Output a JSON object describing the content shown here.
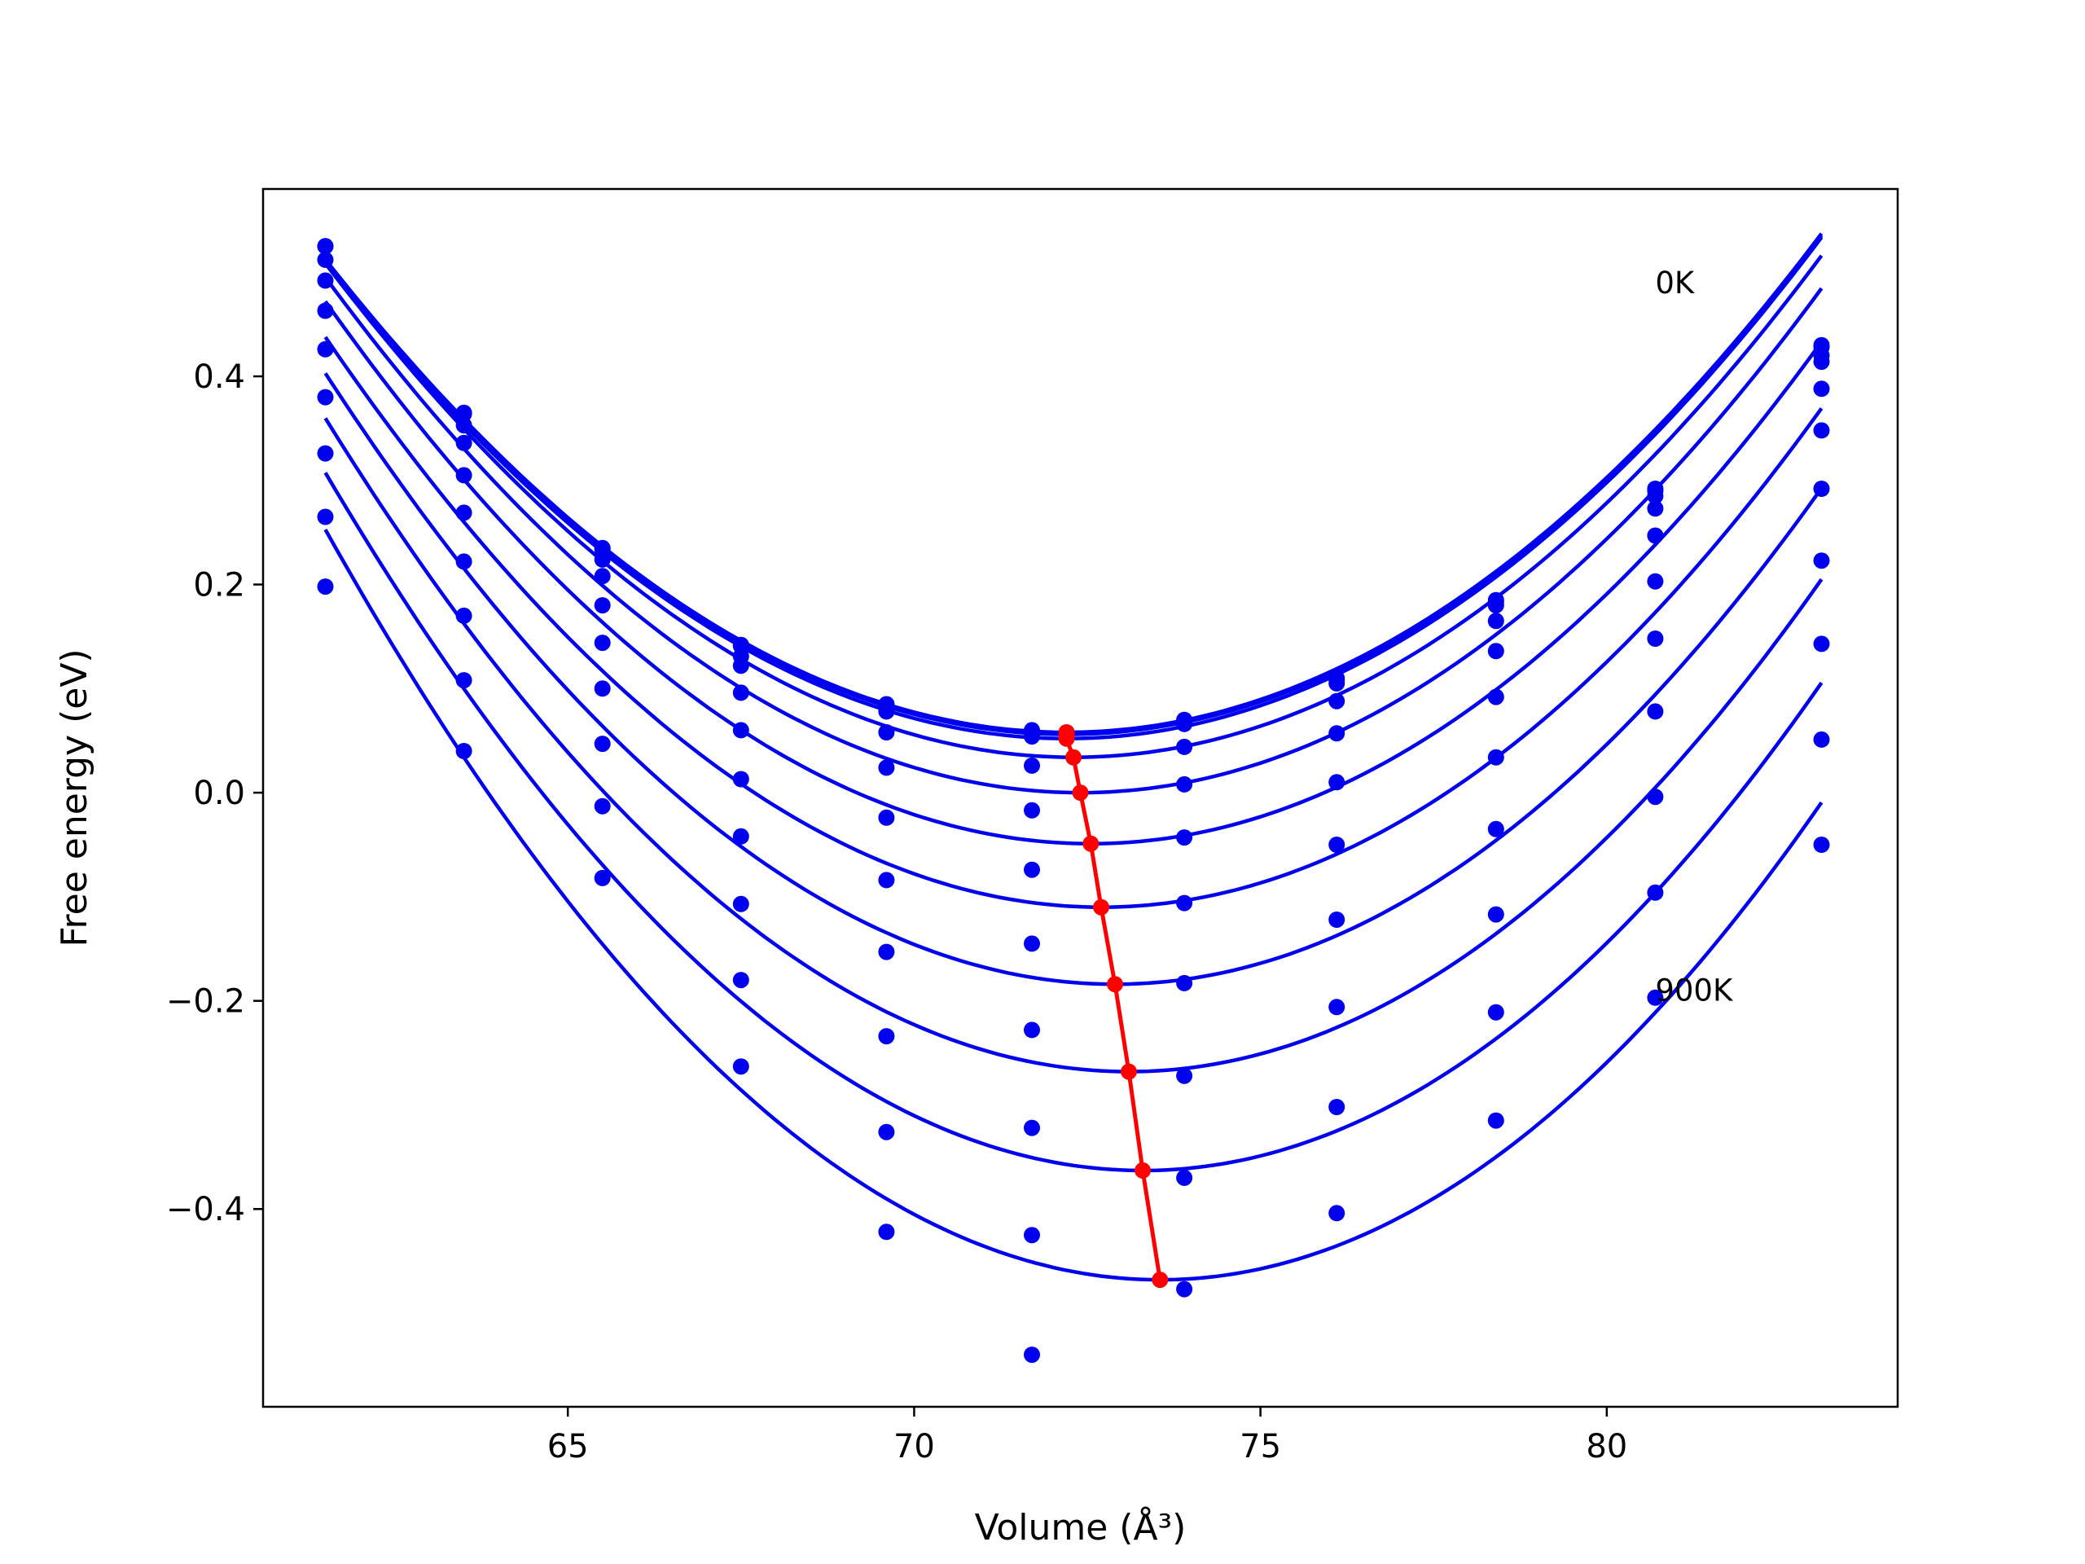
{
  "chart_data": {
    "type": "line",
    "title": "",
    "xlabel": "Volume (Å³)",
    "ylabel": "Free energy (eV)",
    "xlim": [
      60.6,
      84.2
    ],
    "ylim": [
      -0.59,
      0.58
    ],
    "xticks": [
      65,
      70,
      75,
      80
    ],
    "xtick_labels": [
      "65",
      "70",
      "75",
      "80"
    ],
    "yticks": [
      -0.4,
      -0.2,
      0.0,
      0.2,
      0.4
    ],
    "ytick_labels": [
      "−0.4",
      "−0.2",
      "0.0",
      "0.2",
      "0.4"
    ],
    "grid": false,
    "legend": "none",
    "annotations": [
      {
        "text": "0K",
        "x": 80.7,
        "y": 0.48
      },
      {
        "text": "900K",
        "x": 80.7,
        "y": -0.2
      }
    ],
    "colors": {
      "fit_curves": "#0000ee",
      "data_points": "#0000ee",
      "minimum_path": "#ff0000"
    },
    "volumes": [
      61.5,
      63.5,
      65.5,
      67.5,
      69.6,
      71.7,
      73.9,
      76.1,
      78.4,
      80.7,
      83.1
    ],
    "curve_x_range": [
      61.5,
      83.1
    ],
    "series": [
      {
        "temperature_index": 0,
        "points": [
          0.525,
          0.365,
          0.235,
          0.142,
          0.085,
          0.06,
          0.07,
          0.11,
          0.185,
          0.292,
          0.43
        ],
        "fit": {
          "v0": 72.2,
          "e0": 0.058,
          "k": 0.004,
          "c": 3e-06
        }
      },
      {
        "temperature_index": 1,
        "points": [
          0.525,
          0.364,
          0.234,
          0.141,
          0.083,
          0.058,
          0.068,
          0.108,
          0.183,
          0.29,
          0.428
        ],
        "fit": {
          "v0": 72.2,
          "e0": 0.056,
          "k": 0.004,
          "c": 3e-06
        }
      },
      {
        "temperature_index": 2,
        "points": [
          0.512,
          0.353,
          0.224,
          0.131,
          0.078,
          0.054,
          0.066,
          0.105,
          0.18,
          0.285,
          0.42
        ],
        "fit": {
          "v0": 72.2,
          "e0": 0.052,
          "k": 0.00402,
          "c": 3e-06
        }
      },
      {
        "temperature_index": 3,
        "points": [
          0.492,
          0.336,
          0.208,
          0.122,
          0.058,
          0.026,
          0.044,
          0.088,
          0.165,
          0.273,
          0.414
        ],
        "fit": {
          "v0": 72.3,
          "e0": 0.034,
          "k": 0.0041,
          "c": 3e-06
        }
      },
      {
        "temperature_index": 4,
        "points": [
          0.463,
          0.305,
          0.18,
          0.096,
          0.024,
          -0.017,
          0.008,
          0.057,
          0.136,
          0.247,
          0.388
        ],
        "fit": {
          "v0": 72.4,
          "e0": 0.0,
          "k": 0.0042,
          "c": 3e-06
        }
      },
      {
        "temperature_index": 5,
        "points": [
          0.426,
          0.269,
          0.144,
          0.06,
          -0.024,
          -0.074,
          -0.043,
          0.01,
          0.092,
          0.203,
          0.348
        ],
        "fit": {
          "v0": 72.55,
          "e0": -0.049,
          "k": 0.0043,
          "c": 3e-06
        }
      },
      {
        "temperature_index": 6,
        "points": [
          0.38,
          0.222,
          0.1,
          0.013,
          -0.084,
          -0.145,
          -0.106,
          -0.05,
          0.034,
          0.148,
          0.292
        ],
        "fit": {
          "v0": 72.7,
          "e0": -0.11,
          "k": 0.0044,
          "c": 3e-06
        }
      },
      {
        "temperature_index": 7,
        "points": [
          0.326,
          0.17,
          0.047,
          -0.042,
          -0.153,
          -0.228,
          -0.183,
          -0.122,
          -0.035,
          0.078,
          0.223
        ],
        "fit": {
          "v0": 72.9,
          "e0": -0.184,
          "k": 0.00455,
          "c": 3e-06
        }
      },
      {
        "temperature_index": 8,
        "points": [
          0.265,
          0.108,
          -0.013,
          -0.107,
          -0.234,
          -0.322,
          -0.272,
          -0.206,
          -0.117,
          -0.004,
          0.143
        ],
        "fit": {
          "v0": 73.1,
          "e0": -0.268,
          "k": 0.0047,
          "c": 3e-06
        }
      },
      {
        "temperature_index": 9,
        "points": [
          0.198,
          0.04,
          -0.082,
          -0.18,
          -0.326,
          -0.425,
          -0.37,
          -0.302,
          -0.211,
          -0.096,
          0.051
        ],
        "fit": {
          "v0": 73.3,
          "e0": -0.363,
          "k": 0.00485,
          "c": 3e-06
        }
      },
      {
        "temperature_index": 10,
        "points": [
          null,
          null,
          null,
          -0.263,
          -0.422,
          -0.54,
          -0.477,
          -0.404,
          -0.315,
          -0.197,
          -0.05
        ],
        "fit": {
          "v0": 73.55,
          "e0": -0.468,
          "k": 0.005,
          "c": 3e-06
        }
      }
    ],
    "minimum_path": {
      "x": [
        72.2,
        72.2,
        72.2,
        72.3,
        72.4,
        72.55,
        72.7,
        72.9,
        73.1,
        73.3,
        73.55
      ],
      "y": [
        0.058,
        0.056,
        0.052,
        0.034,
        0.0,
        -0.049,
        -0.11,
        -0.184,
        -0.268,
        -0.363,
        -0.468
      ]
    }
  }
}
